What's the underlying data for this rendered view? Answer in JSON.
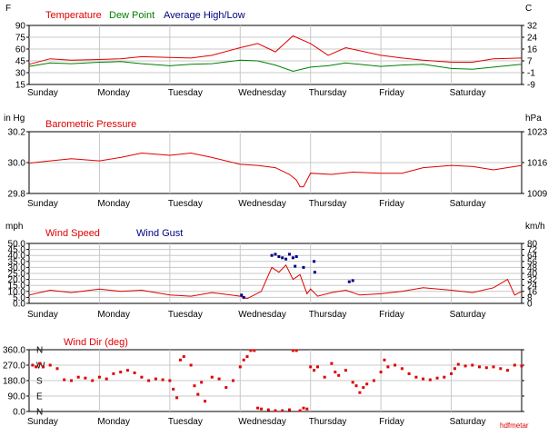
{
  "days": [
    "Sunday",
    "Monday",
    "Tuesday",
    "Wednesday",
    "Thursday",
    "Friday",
    "Saturday"
  ],
  "credit": "hdfmetar",
  "colors": {
    "red": "#e00000",
    "green": "#008000",
    "navy": "#000080",
    "grid": "#c8c8c8"
  },
  "chart_data": [
    {
      "id": "temperature",
      "type": "line",
      "left_unit": "F",
      "right_unit": "C",
      "legend": [
        "Temperature",
        "Dew Point",
        "Average High/Low"
      ],
      "ylim": [
        15,
        100
      ],
      "left_ticks": [
        "90",
        "75",
        "60",
        "45",
        "30",
        "15"
      ],
      "right_ticks": [
        "32",
        "24",
        "16",
        "7",
        "-1",
        "-9"
      ],
      "x_days": [
        0,
        0.3,
        0.6,
        1,
        1.3,
        1.6,
        2,
        2.3,
        2.6,
        3,
        3.25,
        3.5,
        3.75,
        4,
        4.25,
        4.5,
        5,
        5.3,
        5.6,
        6,
        6.3,
        6.6,
        7
      ],
      "series": [
        {
          "name": "Temperature",
          "color": "#e00000",
          "values": [
            44,
            52,
            50,
            51,
            52,
            55,
            54,
            53,
            57,
            68,
            74,
            62,
            85,
            74,
            57,
            68,
            57,
            53,
            50,
            47,
            47,
            52,
            53
          ]
        },
        {
          "name": "Dew Point",
          "color": "#008000",
          "values": [
            41,
            46,
            45,
            47,
            48,
            45,
            42,
            44,
            45,
            50,
            49,
            43,
            34,
            40,
            42,
            46,
            41,
            43,
            44,
            38,
            37,
            40,
            44
          ]
        }
      ]
    },
    {
      "id": "pressure",
      "type": "line",
      "left_unit": "in Hg",
      "right_unit": "hPa",
      "legend": [
        "Barometric Pressure"
      ],
      "ylim": [
        29.8,
        30.35
      ],
      "left_ticks": [
        "30.2",
        "30.0",
        "29.8"
      ],
      "right_ticks": [
        "1023",
        "1016",
        "1009"
      ],
      "x_days": [
        0,
        0.3,
        0.6,
        1,
        1.3,
        1.6,
        2,
        2.3,
        2.6,
        3,
        3.25,
        3.5,
        3.7,
        3.8,
        3.85,
        3.9,
        4,
        4.3,
        4.6,
        5,
        5.3,
        5.6,
        6,
        6.3,
        6.6,
        7
      ],
      "series": [
        {
          "name": "Barometric Pressure",
          "color": "#e00000",
          "values": [
            30.07,
            30.09,
            30.11,
            30.09,
            30.12,
            30.16,
            30.14,
            30.16,
            30.12,
            30.06,
            30.05,
            30.03,
            29.97,
            29.92,
            29.86,
            29.86,
            29.98,
            29.97,
            29.99,
            29.98,
            29.98,
            30.03,
            30.05,
            30.04,
            30.01,
            30.05
          ]
        }
      ]
    },
    {
      "id": "wind",
      "type": "line",
      "left_unit": "mph",
      "right_unit": "km/h",
      "legend": [
        "Wind Speed",
        "Wind Gust"
      ],
      "ylim": [
        0,
        50
      ],
      "left_ticks": [
        "50.0",
        "45.0",
        "40.0",
        "35.0",
        "30.0",
        "25.0",
        "20.0",
        "15.0",
        "10.0",
        "5.0",
        "0.0"
      ],
      "right_ticks": [
        "80",
        "72",
        "64",
        "56",
        "48",
        "40",
        "32",
        "24",
        "16",
        "8",
        "0"
      ],
      "x_days": [
        0,
        0.3,
        0.6,
        1,
        1.3,
        1.6,
        2,
        2.3,
        2.6,
        3,
        3.1,
        3.3,
        3.45,
        3.55,
        3.65,
        3.75,
        3.85,
        3.95,
        4,
        4.1,
        4.3,
        4.5,
        4.7,
        5,
        5.3,
        5.6,
        6,
        6.3,
        6.6,
        6.8,
        6.9,
        7
      ],
      "series": [
        {
          "name": "Wind Speed",
          "color": "#e00000",
          "values": [
            7,
            11,
            9,
            12,
            10,
            11,
            7,
            6,
            9,
            6,
            4,
            10,
            30,
            26,
            32,
            20,
            24,
            8,
            12,
            6,
            9,
            11,
            7,
            8,
            10,
            13,
            11,
            9,
            13,
            20,
            7,
            10
          ]
        },
        {
          "name": "Wind Gust",
          "color": "#000080",
          "points": [
            [
              3.02,
              7
            ],
            [
              3.05,
              5
            ],
            [
              3.45,
              40
            ],
            [
              3.5,
              41
            ],
            [
              3.55,
              39
            ],
            [
              3.6,
              38
            ],
            [
              3.65,
              37
            ],
            [
              3.7,
              41
            ],
            [
              3.75,
              38
            ],
            [
              3.8,
              39
            ],
            [
              3.78,
              31
            ],
            [
              3.9,
              30
            ],
            [
              4.05,
              35
            ],
            [
              4.06,
              26
            ],
            [
              4.55,
              18
            ],
            [
              4.6,
              19
            ]
          ]
        }
      ]
    },
    {
      "id": "wind_dir",
      "type": "scatter",
      "legend": [
        "Wind Dir (deg)"
      ],
      "ylim": [
        0,
        360
      ],
      "left_ticks": [
        "360.0",
        "270.0",
        "180.0",
        "90.0",
        "0.0"
      ],
      "right_ticks": [
        "N",
        "W",
        "S",
        "E",
        "N"
      ],
      "series": [
        {
          "name": "Wind Dir (deg)",
          "color": "#e00000",
          "points": [
            [
              0.05,
              270
            ],
            [
              0.1,
              260
            ],
            [
              0.15,
              280
            ],
            [
              0.2,
              260
            ],
            [
              0.3,
              270
            ],
            [
              0.4,
              250
            ],
            [
              0.5,
              185
            ],
            [
              0.6,
              180
            ],
            [
              0.7,
              200
            ],
            [
              0.8,
              195
            ],
            [
              0.9,
              180
            ],
            [
              1.0,
              200
            ],
            [
              1.1,
              190
            ],
            [
              1.2,
              220
            ],
            [
              1.3,
              230
            ],
            [
              1.4,
              240
            ],
            [
              1.5,
              225
            ],
            [
              1.6,
              200
            ],
            [
              1.7,
              180
            ],
            [
              1.8,
              190
            ],
            [
              1.9,
              185
            ],
            [
              2.0,
              180
            ],
            [
              2.05,
              130
            ],
            [
              2.1,
              80
            ],
            [
              2.15,
              300
            ],
            [
              2.2,
              320
            ],
            [
              2.3,
              270
            ],
            [
              2.35,
              150
            ],
            [
              2.4,
              100
            ],
            [
              2.45,
              170
            ],
            [
              2.5,
              60
            ],
            [
              2.6,
              200
            ],
            [
              2.7,
              190
            ],
            [
              2.8,
              140
            ],
            [
              2.9,
              180
            ],
            [
              3.0,
              260
            ],
            [
              3.05,
              300
            ],
            [
              3.1,
              320
            ],
            [
              3.15,
              355
            ],
            [
              3.2,
              355
            ],
            [
              3.25,
              20
            ],
            [
              3.3,
              15
            ],
            [
              3.4,
              10
            ],
            [
              3.5,
              5
            ],
            [
              3.6,
              5
            ],
            [
              3.7,
              10
            ],
            [
              3.75,
              355
            ],
            [
              3.8,
              355
            ],
            [
              3.85,
              5
            ],
            [
              3.9,
              20
            ],
            [
              3.95,
              15
            ],
            [
              4.0,
              260
            ],
            [
              4.05,
              240
            ],
            [
              4.1,
              260
            ],
            [
              4.2,
              200
            ],
            [
              4.3,
              280
            ],
            [
              4.35,
              230
            ],
            [
              4.4,
              210
            ],
            [
              4.5,
              240
            ],
            [
              4.6,
              170
            ],
            [
              4.65,
              150
            ],
            [
              4.7,
              110
            ],
            [
              4.75,
              140
            ],
            [
              4.8,
              160
            ],
            [
              4.9,
              180
            ],
            [
              5.0,
              230
            ],
            [
              5.05,
              300
            ],
            [
              5.1,
              260
            ],
            [
              5.2,
              270
            ],
            [
              5.3,
              250
            ],
            [
              5.4,
              220
            ],
            [
              5.5,
              200
            ],
            [
              5.6,
              190
            ],
            [
              5.7,
              185
            ],
            [
              5.8,
              195
            ],
            [
              5.9,
              200
            ],
            [
              6.0,
              220
            ],
            [
              6.05,
              250
            ],
            [
              6.1,
              275
            ],
            [
              6.2,
              265
            ],
            [
              6.3,
              270
            ],
            [
              6.4,
              260
            ],
            [
              6.5,
              255
            ],
            [
              6.6,
              260
            ],
            [
              6.7,
              250
            ],
            [
              6.8,
              240
            ],
            [
              6.9,
              270
            ],
            [
              7.0,
              265
            ]
          ]
        }
      ]
    }
  ]
}
